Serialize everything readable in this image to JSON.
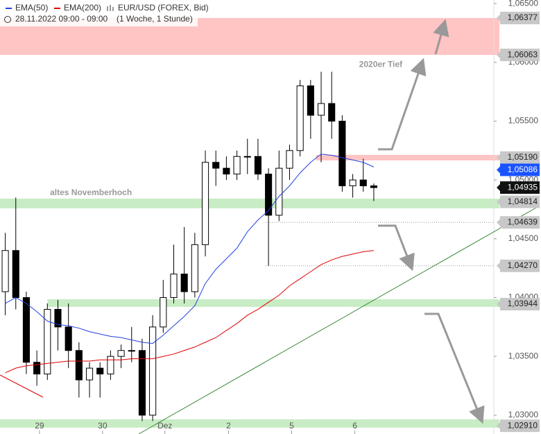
{
  "chart_data": {
    "type": "candlestick",
    "instrument": "EUR/USD (FOREX, Bid)",
    "period": "28.11.2022 09:00 - 09:00",
    "interval": "(1 Woche, 1 Stunde)",
    "xlim": [
      0,
      46.9
    ],
    "xticks": [
      {
        "value": 3.75,
        "label": "29"
      },
      {
        "value": 9.74,
        "label": "30"
      },
      {
        "value": 15.66,
        "label": "Dez"
      },
      {
        "value": 21.7,
        "label": "2"
      },
      {
        "value": 27.7,
        "label": "5"
      },
      {
        "value": 33.7,
        "label": "6"
      }
    ],
    "ylim": [
      1.0284,
      1.0653
    ],
    "yticks": [
      {
        "value": 1.065,
        "label": "1,06500"
      },
      {
        "value": 1.06,
        "label": "1,06000"
      },
      {
        "value": 1.055,
        "label": "1,05500"
      },
      {
        "value": 1.05,
        "label": "1,05000"
      },
      {
        "value": 1.045,
        "label": "1,04500"
      },
      {
        "value": 1.04,
        "label": "1,04000"
      },
      {
        "value": 1.035,
        "label": "1,03500"
      },
      {
        "value": 1.03,
        "label": "1,03000"
      }
    ],
    "open": [
      1.0405,
      1.044,
      1.04,
      1.0345,
      1.0335,
      1.039,
      1.0375,
      1.0355,
      1.033,
      1.034,
      1.0335,
      1.035,
      1.0355,
      1.0355,
      1.03,
      1.0375,
      1.04,
      1.042,
      1.0405,
      1.0445,
      1.0515,
      1.051,
      1.0505,
      1.052,
      1.052,
      1.0505,
      1.047,
      1.051,
      1.0525,
      1.058,
      1.0555,
      1.0565,
      1.055,
      1.0495,
      1.05,
      1.0495
    ],
    "high": [
      1.0455,
      1.0485,
      1.0405,
      1.0355,
      1.0395,
      1.0398,
      1.0395,
      1.0362,
      1.0345,
      1.0345,
      1.0355,
      1.036,
      1.0375,
      1.0365,
      1.0385,
      1.0415,
      1.0445,
      1.046,
      1.0455,
      1.0525,
      1.0525,
      1.052,
      1.0525,
      1.0535,
      1.0535,
      1.051,
      1.0525,
      1.053,
      1.0585,
      1.0585,
      1.0592,
      1.0592,
      1.0555,
      1.0505,
      1.0518,
      1.0497
    ],
    "low": [
      1.0385,
      1.039,
      1.0335,
      1.0325,
      1.033,
      1.0355,
      1.034,
      1.0315,
      1.0315,
      1.0315,
      1.033,
      1.034,
      1.0345,
      1.0295,
      1.0295,
      1.037,
      1.0395,
      1.0395,
      1.04,
      1.0435,
      1.0495,
      1.05,
      1.05,
      1.0505,
      1.05,
      1.0427,
      1.0465,
      1.05,
      1.052,
      1.0535,
      1.0515,
      1.0535,
      1.049,
      1.0485,
      1.049,
      1.0482
    ],
    "close": [
      1.044,
      1.04,
      1.0345,
      1.0335,
      1.039,
      1.0375,
      1.0355,
      1.033,
      1.034,
      1.0335,
      1.035,
      1.0355,
      1.0355,
      1.03,
      1.0375,
      1.04,
      1.042,
      1.0405,
      1.0445,
      1.0515,
      1.051,
      1.0505,
      1.052,
      1.052,
      1.0505,
      1.047,
      1.051,
      1.0525,
      1.058,
      1.0555,
      1.0565,
      1.055,
      1.0495,
      1.05,
      1.0495,
      1.04935
    ],
    "series": [
      {
        "name": "EMA(50)",
        "color": "#2040e0",
        "values": [
          1.0395,
          1.04,
          1.0395,
          1.0388,
          1.038,
          1.0377,
          1.0376,
          1.0374,
          1.0371,
          1.0369,
          1.0367,
          1.0366,
          1.0364,
          1.0362,
          1.0361,
          1.0368,
          1.0376,
          1.0384,
          1.0393,
          1.0412,
          1.0424,
          1.0433,
          1.0442,
          1.0456,
          1.0466,
          1.0474,
          1.0486,
          1.0495,
          1.0506,
          1.0515,
          1.0522,
          1.0521,
          1.0519,
          1.0517,
          1.0515,
          1.0511
        ]
      },
      {
        "name": "EMA(200)",
        "color": "#e00000",
        "values": [
          1.0336,
          1.034,
          1.0342,
          1.0343,
          1.0344,
          1.0345,
          1.0346,
          1.0346,
          1.0346,
          1.0347,
          1.0347,
          1.0347,
          1.0348,
          1.0348,
          1.0348,
          1.035,
          1.0352,
          1.0355,
          1.0358,
          1.0362,
          1.0366,
          1.0372,
          1.0378,
          1.0385,
          1.039,
          1.0396,
          1.0402,
          1.041,
          1.0416,
          1.0422,
          1.0428,
          1.0432,
          1.0435,
          1.0437,
          1.0439,
          1.044
        ]
      }
    ],
    "zones": [
      {
        "range": [
          1.06063,
          1.06377
        ],
        "from": 0,
        "color": "#ffc4c4"
      },
      {
        "range": [
          1.05166,
          1.05213
        ],
        "from": 30,
        "color": "#ffc4c4"
      },
      {
        "range": [
          1.04759,
          1.04841
        ],
        "from": 0,
        "color": "#c8ecc4"
      },
      {
        "range": [
          1.03921,
          1.03986
        ],
        "from": 4.5,
        "color": "#c8ecc4"
      },
      {
        "range": [
          1.02894,
          1.02965
        ],
        "from": 0,
        "color": "#c8ecc4"
      }
    ],
    "levels": [
      {
        "value": 1.06377,
        "label": "1,06377",
        "color": "#c8c8c8"
      },
      {
        "value": 1.06063,
        "label": "1,06063",
        "color": "#c8c8c8"
      },
      {
        "value": 1.0519,
        "label": "1,05190",
        "color": "#c8c8c8"
      },
      {
        "value": 1.05086,
        "label": "1,05086",
        "color": "#1a53ff"
      },
      {
        "value": 1.04935,
        "label": "1,04935",
        "color": "#111111"
      },
      {
        "value": 1.04814,
        "label": "1,04814",
        "color": "#c8c8c8"
      },
      {
        "value": 1.04639,
        "label": "1,04639",
        "color": "#c8c8c8",
        "style": "dotted"
      },
      {
        "value": 1.0427,
        "label": "1,04270",
        "color": "#c8c8c8",
        "style": "dotted"
      },
      {
        "value": 1.03944,
        "label": "1,03944",
        "color": "#c8c8c8"
      },
      {
        "value": 1.0291,
        "label": "1,02910",
        "color": "#c8c8c8"
      }
    ],
    "annotations": [
      {
        "text": "2020er Tief",
        "x": 34.1,
        "y": 1.0598
      },
      {
        "text": "altes Novemberhoch",
        "x": 4.75,
        "y": 1.0489
      }
    ]
  }
}
